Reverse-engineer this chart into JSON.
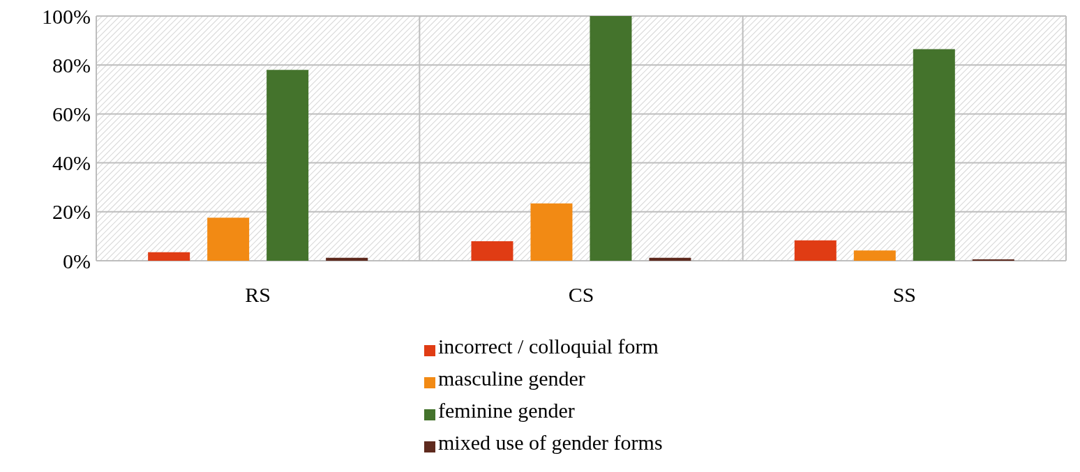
{
  "chart_data": {
    "type": "bar",
    "categories": [
      "RS",
      "CS",
      "SS"
    ],
    "series": [
      {
        "name": "incorrect / colloquial form",
        "color": "#e03c14",
        "values": [
          3.5,
          8,
          8.3
        ]
      },
      {
        "name": "masculine gender",
        "color": "#f28a14",
        "values": [
          17.6,
          23.4,
          4.2
        ]
      },
      {
        "name": "feminine gender",
        "color": "#44732c",
        "values": [
          78,
          100,
          86.5
        ]
      },
      {
        "name": "mixed use of gender forms",
        "color": "#5e2a1e",
        "values": [
          1.2,
          1.2,
          0.6
        ]
      }
    ],
    "ylim": [
      0,
      100
    ],
    "yticks": [
      {
        "value": 0,
        "label": "0%"
      },
      {
        "value": 20,
        "label": "20%"
      },
      {
        "value": 40,
        "label": "40%"
      },
      {
        "value": 60,
        "label": "60%"
      },
      {
        "value": 80,
        "label": "80%"
      },
      {
        "value": 100,
        "label": "100%"
      }
    ],
    "grid": true,
    "legend": "bottom"
  }
}
